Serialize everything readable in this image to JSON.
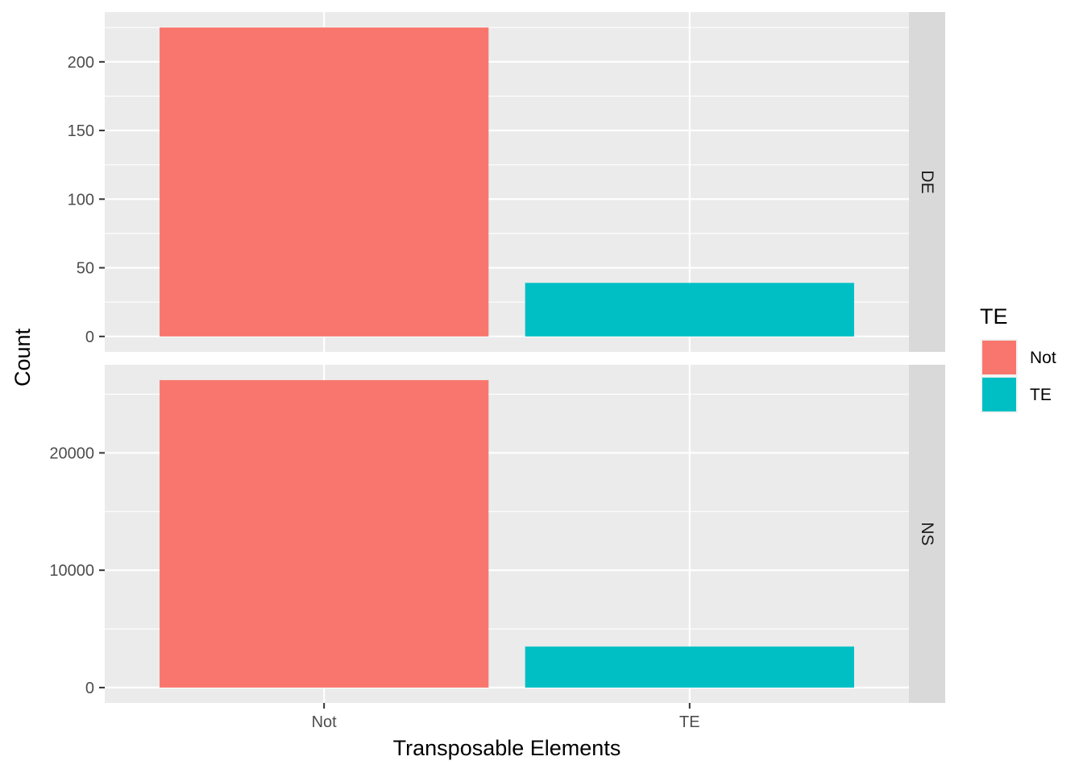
{
  "chart_data": {
    "type": "bar",
    "categories": [
      "Not",
      "TE"
    ],
    "xlabel": "Transposable Elements",
    "ylabel": "Count",
    "legend": {
      "title": "TE",
      "position": "right",
      "entries": [
        {
          "label": "Not",
          "color": "#F8766D"
        },
        {
          "label": "TE",
          "color": "#00BFC4"
        }
      ]
    },
    "facets": [
      {
        "label": "DE",
        "values": [
          225,
          39
        ],
        "ylim": [
          -11.25,
          236.25
        ],
        "yticks": [
          0,
          50,
          100,
          150,
          200
        ],
        "yminor": [
          25,
          75,
          125,
          175,
          225
        ]
      },
      {
        "label": "NS",
        "values": [
          26200,
          3500
        ],
        "ylim": [
          -1310,
          27510
        ],
        "yticks": [
          0,
          10000,
          20000
        ],
        "yminor": [
          5000,
          15000,
          25000
        ]
      }
    ],
    "grid": true,
    "colors": {
      "panel_background": "#EBEBEB",
      "strip_background": "#D9D9D9",
      "grid": "#FFFFFF"
    }
  }
}
